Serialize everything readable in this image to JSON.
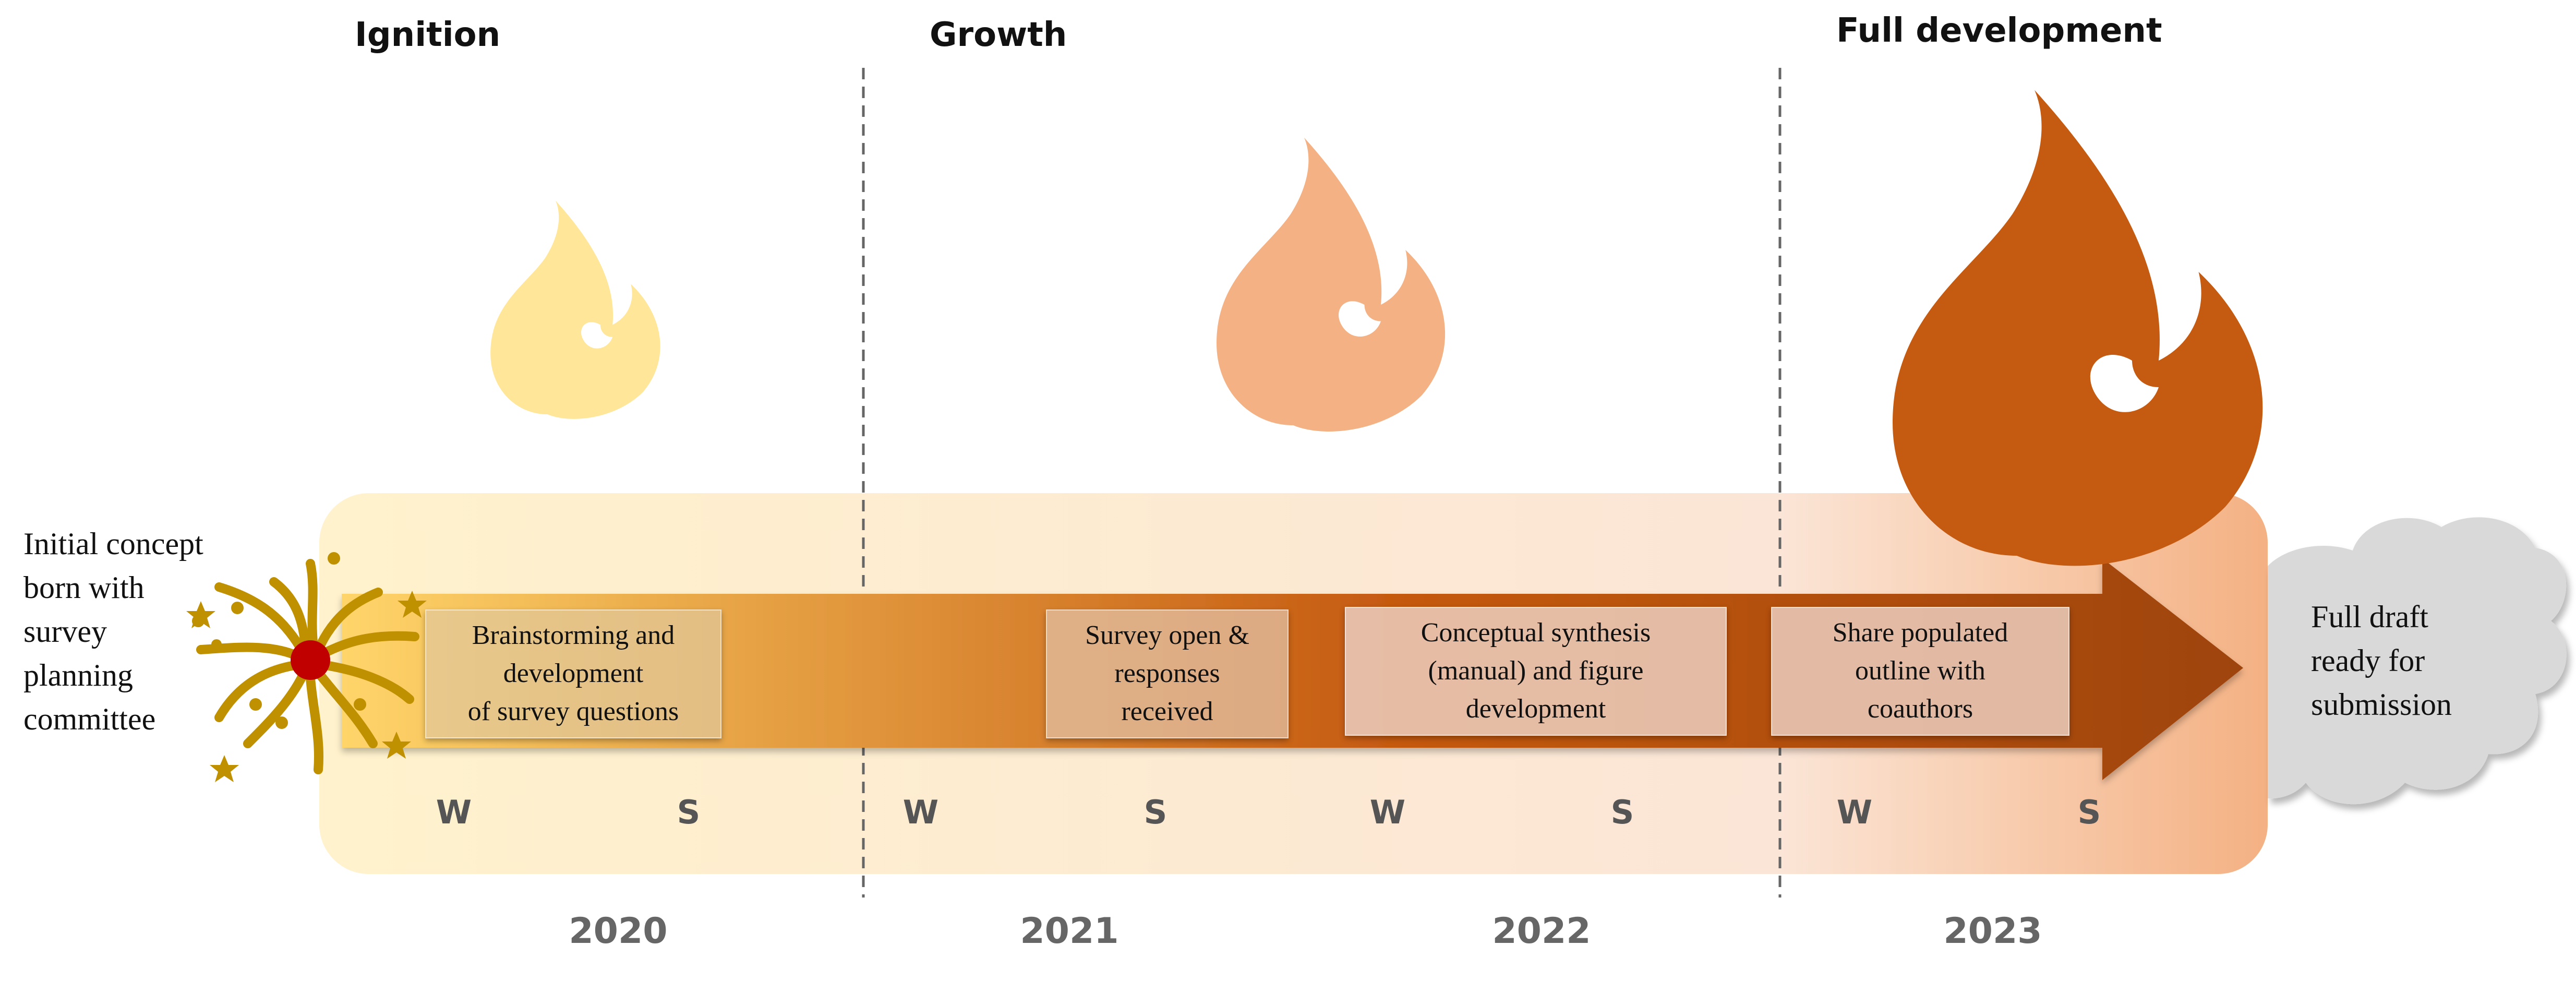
{
  "phases": [
    {
      "label": "Ignition",
      "flame_color": "#FFE699"
    },
    {
      "label": "Growth",
      "flame_color": "#F4B183"
    },
    {
      "label": "Full development",
      "flame_color": "#C55A11"
    }
  ],
  "start_note": "Initial concept\nborn with\nsurvey\nplanning\ncommittee",
  "end_note": "Full draft\nready for\nsubmission",
  "milestones": [
    {
      "text": "Brainstorming and\ndevelopment\nof survey questions"
    },
    {
      "text": "Survey open &\nresponses\nreceived"
    },
    {
      "text": "Conceptual synthesis\n(manual) and figure\ndevelopment"
    },
    {
      "text": "Share populated\noutline with\ncoauthors"
    }
  ],
  "seasons": [
    "W",
    "S",
    "W",
    "S",
    "W",
    "S",
    "W",
    "S"
  ],
  "years": [
    "2020",
    "2021",
    "2022",
    "2023"
  ],
  "icons": {
    "start": "firework-icon",
    "end": "cloud-icon",
    "flame": "flame-icon"
  },
  "colors": {
    "arrow_start": "#FFD56A",
    "arrow_mid": "#C55A11",
    "arrow_end": "#9E4410",
    "band_start": "#FFF2CC",
    "band_end": "#F4B183",
    "firework": "#BF9000",
    "firework_center": "#C00000",
    "cloud": "#D9D9D9"
  }
}
